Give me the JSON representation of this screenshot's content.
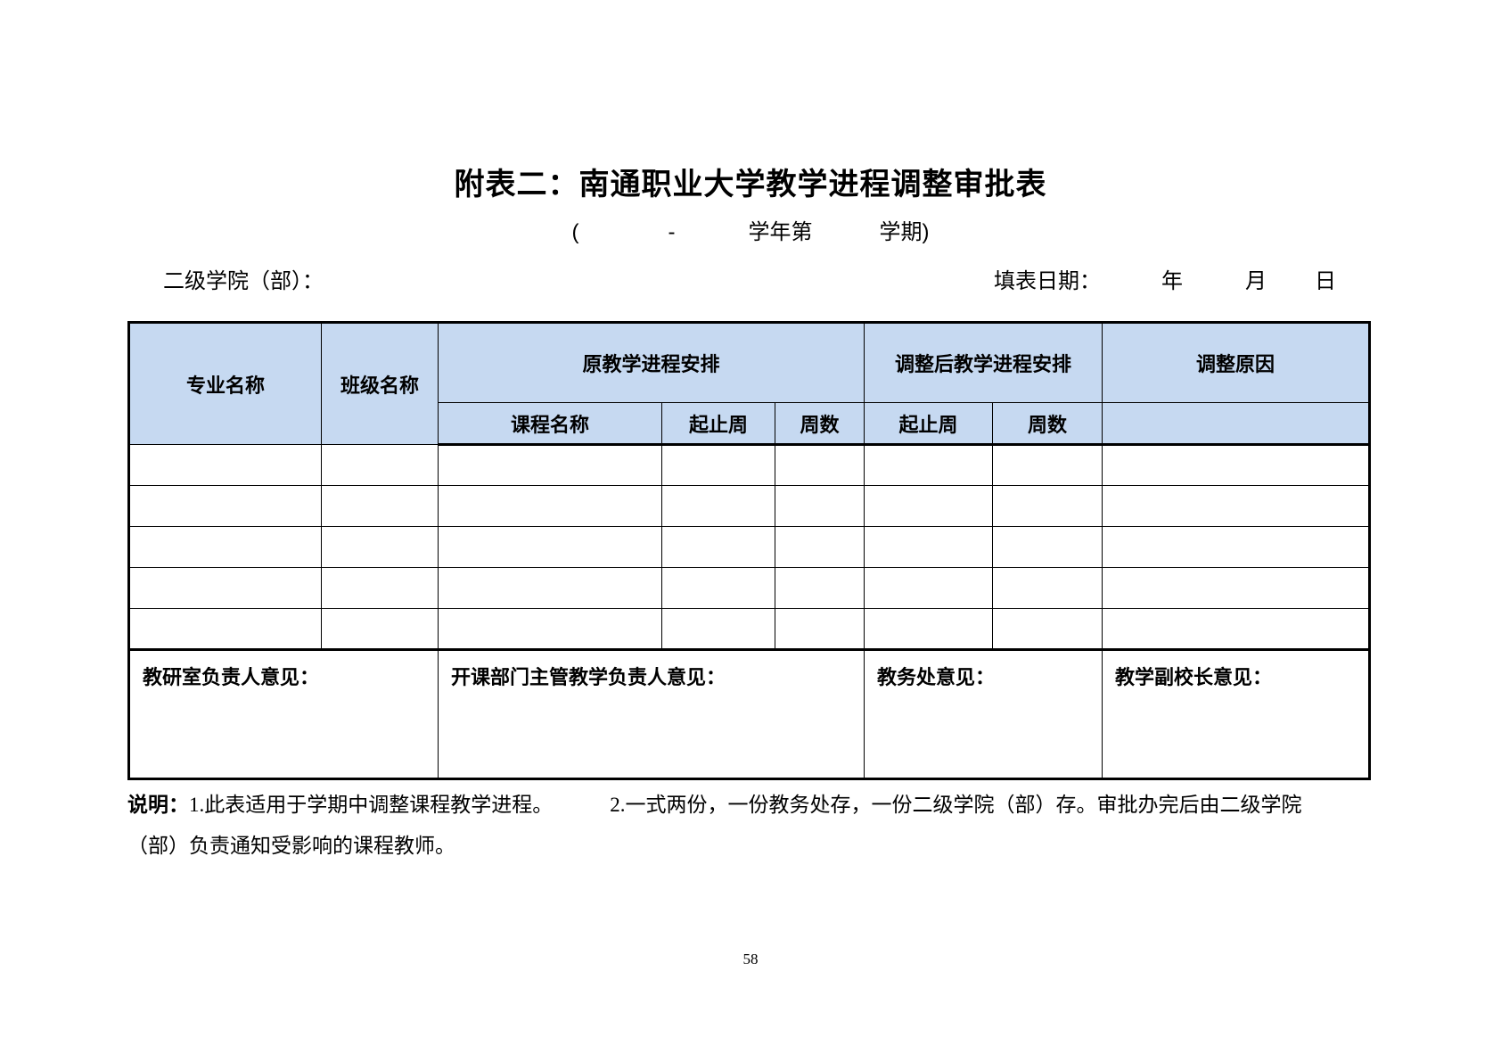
{
  "document": {
    "title": "附表二：南通职业大学教学进程调整审批表",
    "subtitle": {
      "open_paren": "(",
      "dash": "-",
      "year_label": "学年第",
      "term_label": "学期)"
    },
    "info": {
      "college_label": "二级学院（部）：",
      "date_label": "填表日期：",
      "year": "年",
      "month": "月",
      "day": "日"
    },
    "table": {
      "headers": {
        "major": "专业名称",
        "class": "班级名称",
        "original_schedule": "原教学进程安排",
        "adjusted_schedule": "调整后教学进程安排",
        "reason": "调整原因",
        "course_name": "课程名称",
        "start_end_week_original": "起止周",
        "weeks_original": "周数",
        "start_end_week_adjusted": "起止周",
        "weeks_adjusted": "周数"
      },
      "empty_body_rows": 5,
      "columns_per_row": 8,
      "approvals": {
        "research_office": "教研室负责人意见：",
        "department_head": "开课部门主管教学负责人意见：",
        "academic_affairs": "教务处意见：",
        "vice_president": "教学副校长意见："
      }
    },
    "notes": {
      "label": "说明：",
      "item1": "1.此表适用于学期中调整课程教学进程。",
      "item2_line1": "2.一式两份，一份教务处存，一份二级学院（部）存。审批办完后由二级学院",
      "item2_line2": "（部）负责通知受影响的课程教师。"
    },
    "page_number": "58",
    "colors": {
      "header_bg": "#c6d9f1",
      "border": "#000000",
      "text": "#000000"
    }
  }
}
